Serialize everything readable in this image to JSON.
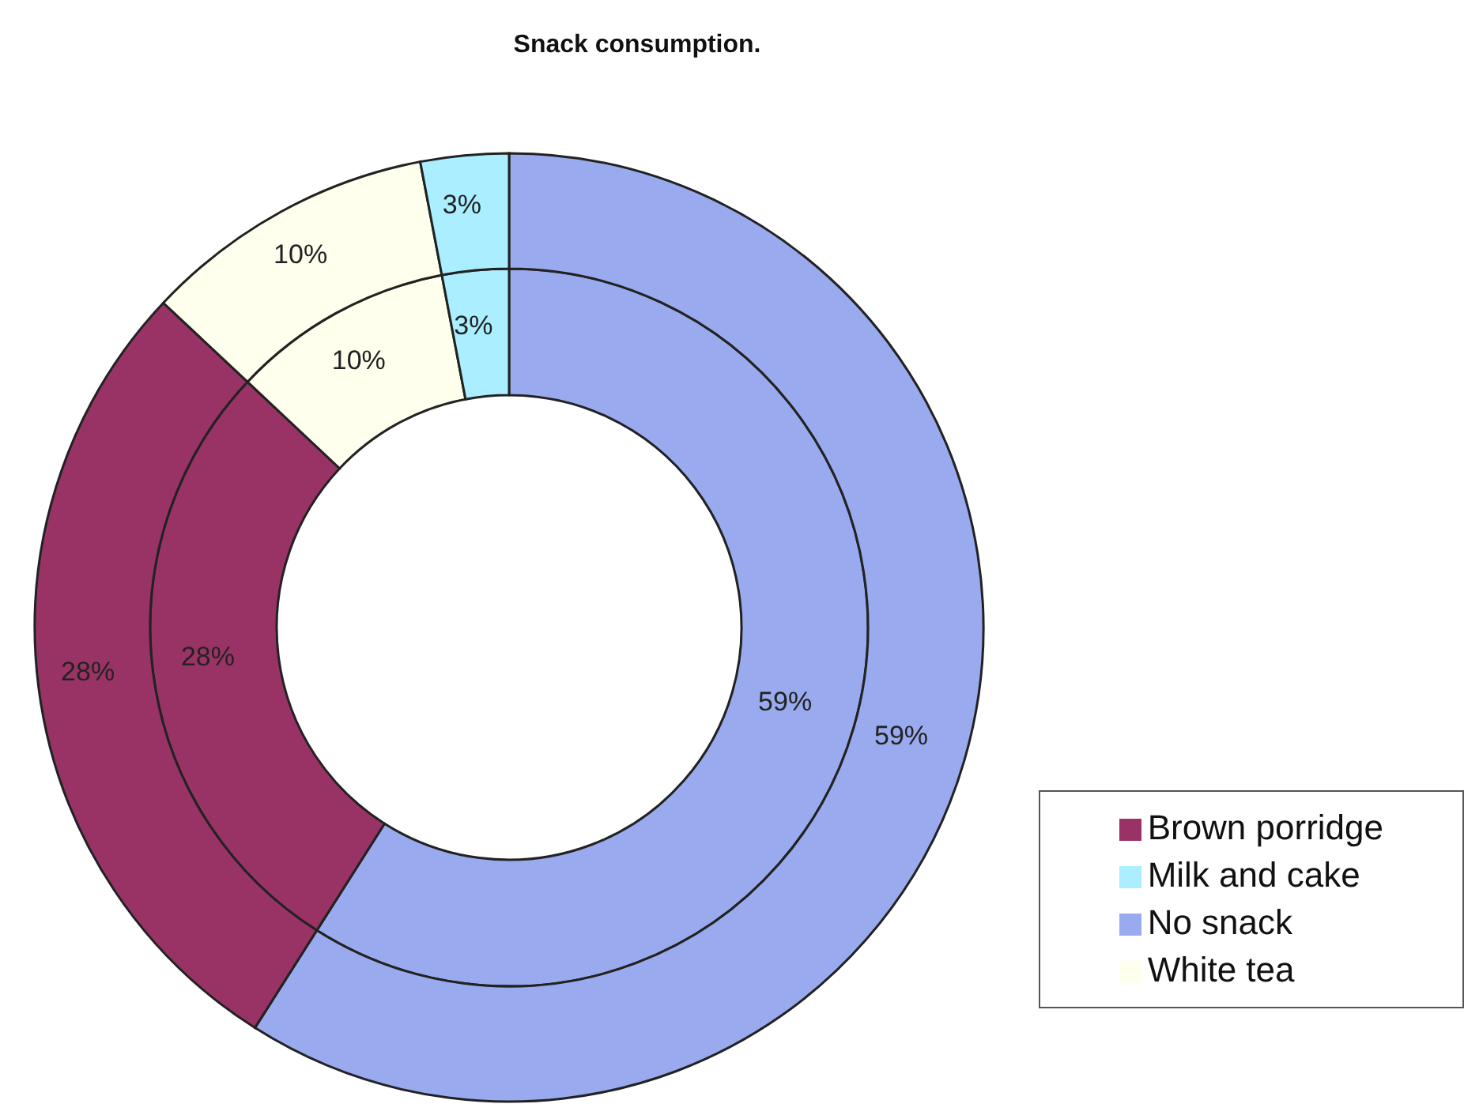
{
  "chart_data": {
    "type": "donut",
    "title": "Snack consumption.",
    "categories": [
      "No snack",
      "Brown porridge",
      "White tea",
      "Milk and cake"
    ],
    "colors": [
      "#99aaee",
      "#993366",
      "#ffffee",
      "#aaeeff"
    ],
    "legend": "right",
    "series": [
      {
        "values": [
          59,
          28,
          10,
          3
        ],
        "value_labels": [
          "59%",
          "28%",
          "10%",
          "3%"
        ]
      },
      {
        "values": [
          59,
          28,
          10,
          3
        ],
        "value_labels": [
          "59%",
          "28%",
          "10%",
          "3%"
        ]
      }
    ]
  }
}
